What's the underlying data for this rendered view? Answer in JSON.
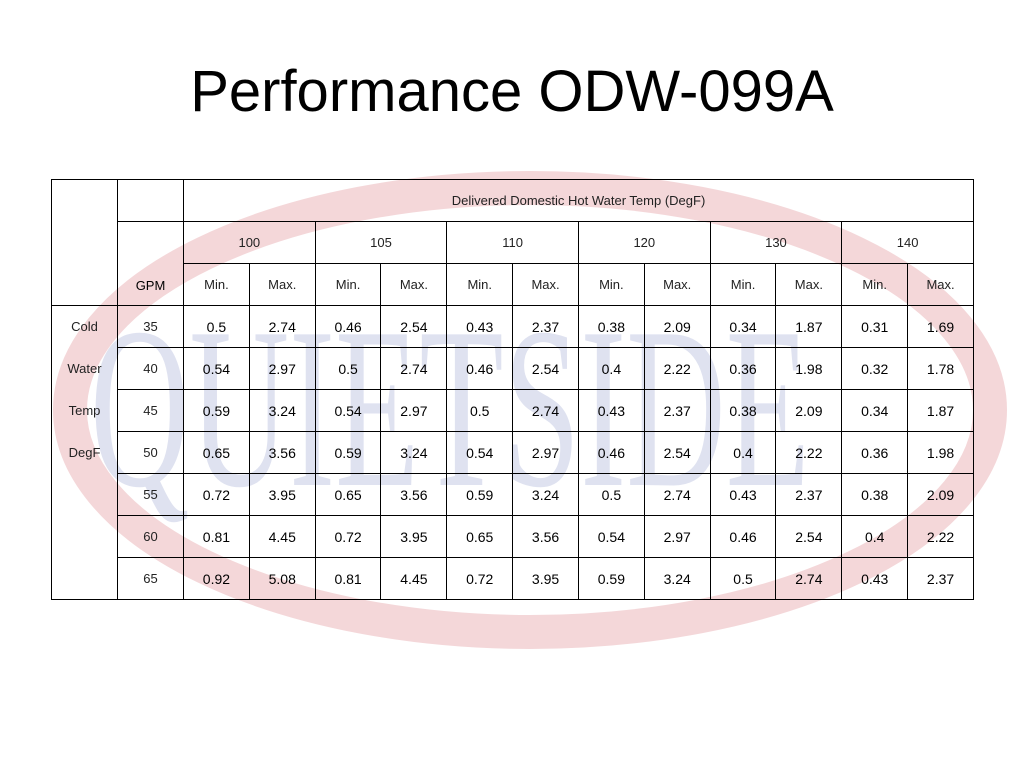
{
  "title": "Performance ODW-099A",
  "watermark": "QUIETSIDE",
  "table": {
    "group_header": "Delivered Domestic Hot Water Temp (DegF)",
    "temps": [
      "100",
      "105",
      "110",
      "120",
      "130",
      "140"
    ],
    "gpm_header": "GPM",
    "min_label": "Min.",
    "max_label": "Max.",
    "rows": [
      {
        "label": "Cold",
        "gpm": "35",
        "values": [
          "0.5",
          "2.74",
          "0.46",
          "2.54",
          "0.43",
          "2.37",
          "0.38",
          "2.09",
          "0.34",
          "1.87",
          "0.31",
          "1.69"
        ]
      },
      {
        "label": "Water",
        "gpm": "40",
        "values": [
          "0.54",
          "2.97",
          "0.5",
          "2.74",
          "0.46",
          "2.54",
          "0.4",
          "2.22",
          "0.36",
          "1.98",
          "0.32",
          "1.78"
        ]
      },
      {
        "label": "Temp",
        "gpm": "45",
        "values": [
          "0.59",
          "3.24",
          "0.54",
          "2.97",
          "0.5",
          "2.74",
          "0.43",
          "2.37",
          "0.38",
          "2.09",
          "0.34",
          "1.87"
        ]
      },
      {
        "label": "DegF",
        "gpm": "50",
        "values": [
          "0.65",
          "3.56",
          "0.59",
          "3.24",
          "0.54",
          "2.97",
          "0.46",
          "2.54",
          "0.4",
          "2.22",
          "0.36",
          "1.98"
        ]
      },
      {
        "gpm": "55",
        "values": [
          "0.72",
          "3.95",
          "0.65",
          "3.56",
          "0.59",
          "3.24",
          "0.5",
          "2.74",
          "0.43",
          "2.37",
          "0.38",
          "2.09"
        ]
      },
      {
        "gpm": "60",
        "values": [
          "0.81",
          "4.45",
          "0.72",
          "3.95",
          "0.65",
          "3.56",
          "0.54",
          "2.97",
          "0.46",
          "2.54",
          "0.4",
          "2.22"
        ]
      },
      {
        "gpm": "65",
        "values": [
          "0.92",
          "5.08",
          "0.81",
          "4.45",
          "0.72",
          "3.95",
          "0.59",
          "3.24",
          "0.5",
          "2.74",
          "0.43",
          "2.37"
        ]
      }
    ]
  }
}
